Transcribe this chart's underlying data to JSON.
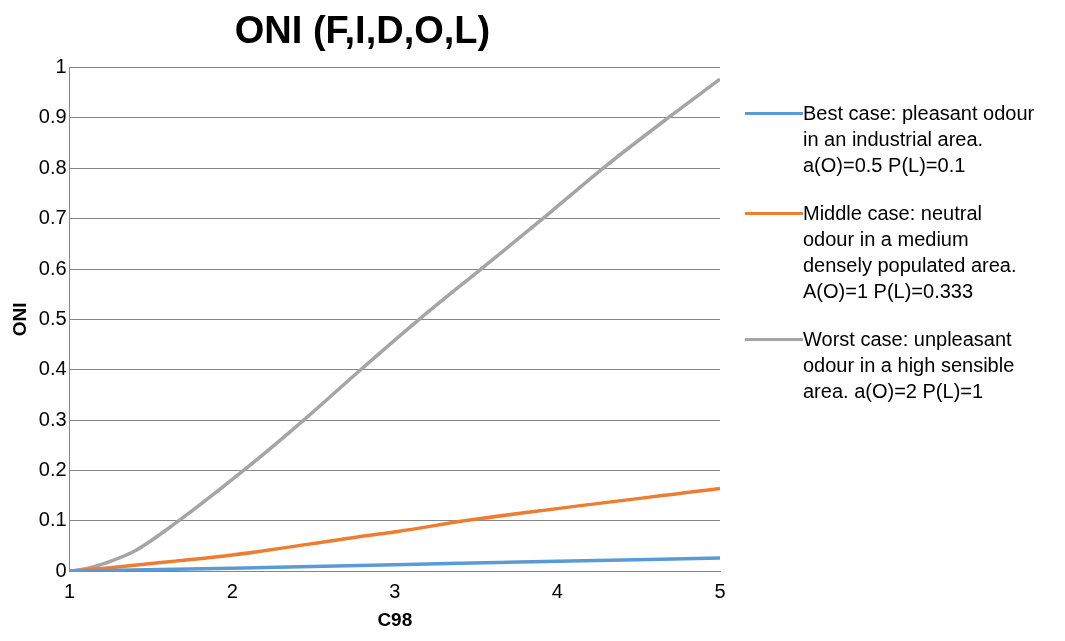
{
  "chart_data": {
    "type": "line",
    "title": "ONI (F,I,D,O,L)",
    "xlabel": "C98",
    "ylabel": "ONI",
    "xlim": [
      1,
      5
    ],
    "xticks": [
      1,
      2,
      3,
      4,
      5
    ],
    "ylim": [
      0,
      1
    ],
    "yticks": [
      0,
      0.1,
      0.2,
      0.3,
      0.4,
      0.5,
      0.6,
      0.7,
      0.8,
      0.9,
      1
    ],
    "grid": "y",
    "legend": "right",
    "marker": "none",
    "line_style": "solid",
    "series": [
      {
        "name": "Best case: pleasant odour in an industrial area. a(O)=0.5 P(L)=0.1",
        "color": "#5b9bd5",
        "x": [
          1,
          2,
          3,
          4,
          5
        ],
        "values": [
          0,
          0.006,
          0.013,
          0.02,
          0.026
        ]
      },
      {
        "name": "Middle case: neutral odour in a medium densely populated area. A(O)=1 P(L)=0.333",
        "color": "#ed7d31",
        "x": [
          1,
          1.22,
          1.65,
          2,
          2.79,
          3.02,
          3.45,
          5
        ],
        "values": [
          0,
          0.006,
          0.02,
          0.032,
          0.069,
          0.079,
          0.101,
          0.164
        ]
      },
      {
        "name": "Worst case: unpleasant odour in a high sensible area. a(O)=2 P(L)=1",
        "color": "#a5a5a5",
        "x": [
          1,
          1.1,
          1.22,
          1.4,
          1.67,
          2.07,
          2.44,
          2.79,
          3.15,
          3.53,
          3.91,
          4.28,
          4.68,
          5
        ],
        "values": [
          0,
          0.005,
          0.016,
          0.04,
          0.1,
          0.2,
          0.3,
          0.4,
          0.5,
          0.6,
          0.7,
          0.8,
          0.9,
          0.977
        ]
      }
    ]
  }
}
